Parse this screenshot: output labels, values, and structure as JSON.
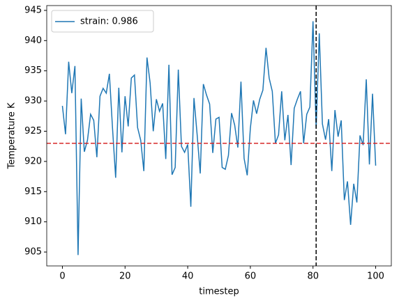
{
  "chart_data": {
    "type": "line",
    "xlabel": "timestep",
    "ylabel": "Temperature K",
    "x": [
      0,
      1,
      2,
      3,
      4,
      5,
      6,
      7,
      8,
      9,
      10,
      11,
      12,
      13,
      14,
      15,
      16,
      17,
      18,
      19,
      20,
      21,
      22,
      23,
      24,
      25,
      26,
      27,
      28,
      29,
      30,
      31,
      32,
      33,
      34,
      35,
      36,
      37,
      38,
      39,
      40,
      41,
      42,
      43,
      44,
      45,
      46,
      47,
      48,
      49,
      50,
      51,
      52,
      53,
      54,
      55,
      56,
      57,
      58,
      59,
      60,
      61,
      62,
      63,
      64,
      65,
      66,
      67,
      68,
      69,
      70,
      71,
      72,
      73,
      74,
      75,
      76,
      77,
      78,
      79,
      80,
      81,
      82,
      83,
      84,
      85,
      86,
      87,
      88,
      89,
      90,
      91,
      92,
      93,
      94,
      95,
      96,
      97,
      98,
      99,
      100
    ],
    "series": [
      {
        "name": "strain: 0.986",
        "color": "#1f77b4",
        "values": [
          929.2,
          924.5,
          936.5,
          931.3,
          935.8,
          904.5,
          930.4,
          921.6,
          923.5,
          927.8,
          926.8,
          920.7,
          930.8,
          932.1,
          931.3,
          934.5,
          925.5,
          917.3,
          932.2,
          921.5,
          930.8,
          925.8,
          933.8,
          934.3,
          925.6,
          923.5,
          918.4,
          937.2,
          933.0,
          925.0,
          930.3,
          928.3,
          929.6,
          920.4,
          936.0,
          917.8,
          919.0,
          935.2,
          922.5,
          921.5,
          922.8,
          912.5,
          930.5,
          924.5,
          918.0,
          932.8,
          931.0,
          929.5,
          921.4,
          927.0,
          927.3,
          919.0,
          918.7,
          921.0,
          928.0,
          926.0,
          922.3,
          933.2,
          920.5,
          917.7,
          925.5,
          930.1,
          927.9,
          930.3,
          931.8,
          938.8,
          933.8,
          931.6,
          923.0,
          924.4,
          931.6,
          923.5,
          927.7,
          919.4,
          928.8,
          930.3,
          931.6,
          923.0,
          927.8,
          929.0,
          943.2,
          925.4,
          941.2,
          926.2,
          923.6,
          927.0,
          918.4,
          928.5,
          924.1,
          926.8,
          913.6,
          916.7,
          909.5,
          916.3,
          913.2,
          924.3,
          922.7,
          933.6,
          919.5,
          931.2,
          919.3
        ]
      }
    ],
    "hline": {
      "value": 923,
      "color": "#d62728"
    },
    "vline": {
      "value": 81,
      "color": "#000000"
    },
    "xlim": [
      -5,
      105
    ],
    "ylim": [
      902.7,
      945.8
    ],
    "xticks": [
      0,
      20,
      40,
      60,
      80,
      100
    ],
    "yticks": [
      905,
      910,
      915,
      920,
      925,
      930,
      935,
      940,
      945
    ],
    "legend": "upper left"
  }
}
